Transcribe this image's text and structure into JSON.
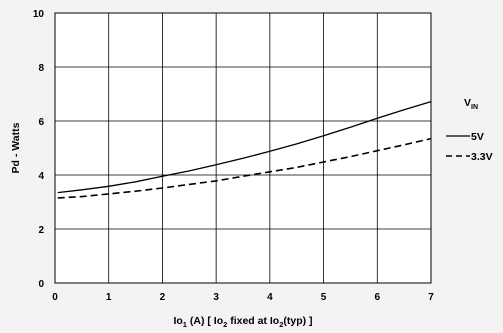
{
  "chart_data": {
    "type": "line",
    "title": "",
    "xlabel": "Io1 (A) [ Io2 fixed at Io2(typ) ]",
    "xlabel_parts": {
      "a": "Io",
      "b": "1",
      "c": " (A) [ Io",
      "d": "2",
      "e": " fixed at Io",
      "f": "2",
      "g": "(typ) ]"
    },
    "ylabel": "Pd - Watts",
    "xlim": [
      0,
      7
    ],
    "ylim": [
      0,
      10
    ],
    "x_ticks": [
      "0",
      "1",
      "2",
      "3",
      "4",
      "5",
      "6",
      "7"
    ],
    "y_ticks": [
      "0",
      "2",
      "4",
      "6",
      "8",
      "10"
    ],
    "grid": true,
    "legend": {
      "title": "VIN",
      "title_main": "V",
      "title_sub": "IN",
      "placement": "right"
    },
    "series": [
      {
        "name": "5V",
        "style": "solid",
        "color": "#000000",
        "points": [
          [
            0.05,
            3.35
          ],
          [
            0.5,
            3.45
          ],
          [
            1,
            3.58
          ],
          [
            1.5,
            3.75
          ],
          [
            2,
            3.95
          ],
          [
            2.5,
            4.15
          ],
          [
            3,
            4.38
          ],
          [
            3.5,
            4.62
          ],
          [
            4,
            4.88
          ],
          [
            4.5,
            5.15
          ],
          [
            5,
            5.45
          ],
          [
            5.5,
            5.77
          ],
          [
            6,
            6.1
          ],
          [
            6.5,
            6.42
          ],
          [
            7,
            6.72
          ]
        ]
      },
      {
        "name": "3.3V",
        "style": "dashed",
        "color": "#000000",
        "points": [
          [
            0.05,
            3.15
          ],
          [
            0.5,
            3.2
          ],
          [
            1,
            3.3
          ],
          [
            1.5,
            3.4
          ],
          [
            2,
            3.52
          ],
          [
            2.5,
            3.65
          ],
          [
            3,
            3.78
          ],
          [
            3.5,
            3.95
          ],
          [
            4,
            4.12
          ],
          [
            4.5,
            4.28
          ],
          [
            5,
            4.48
          ],
          [
            5.5,
            4.68
          ],
          [
            6,
            4.9
          ],
          [
            6.5,
            5.12
          ],
          [
            7,
            5.35
          ]
        ]
      }
    ]
  }
}
